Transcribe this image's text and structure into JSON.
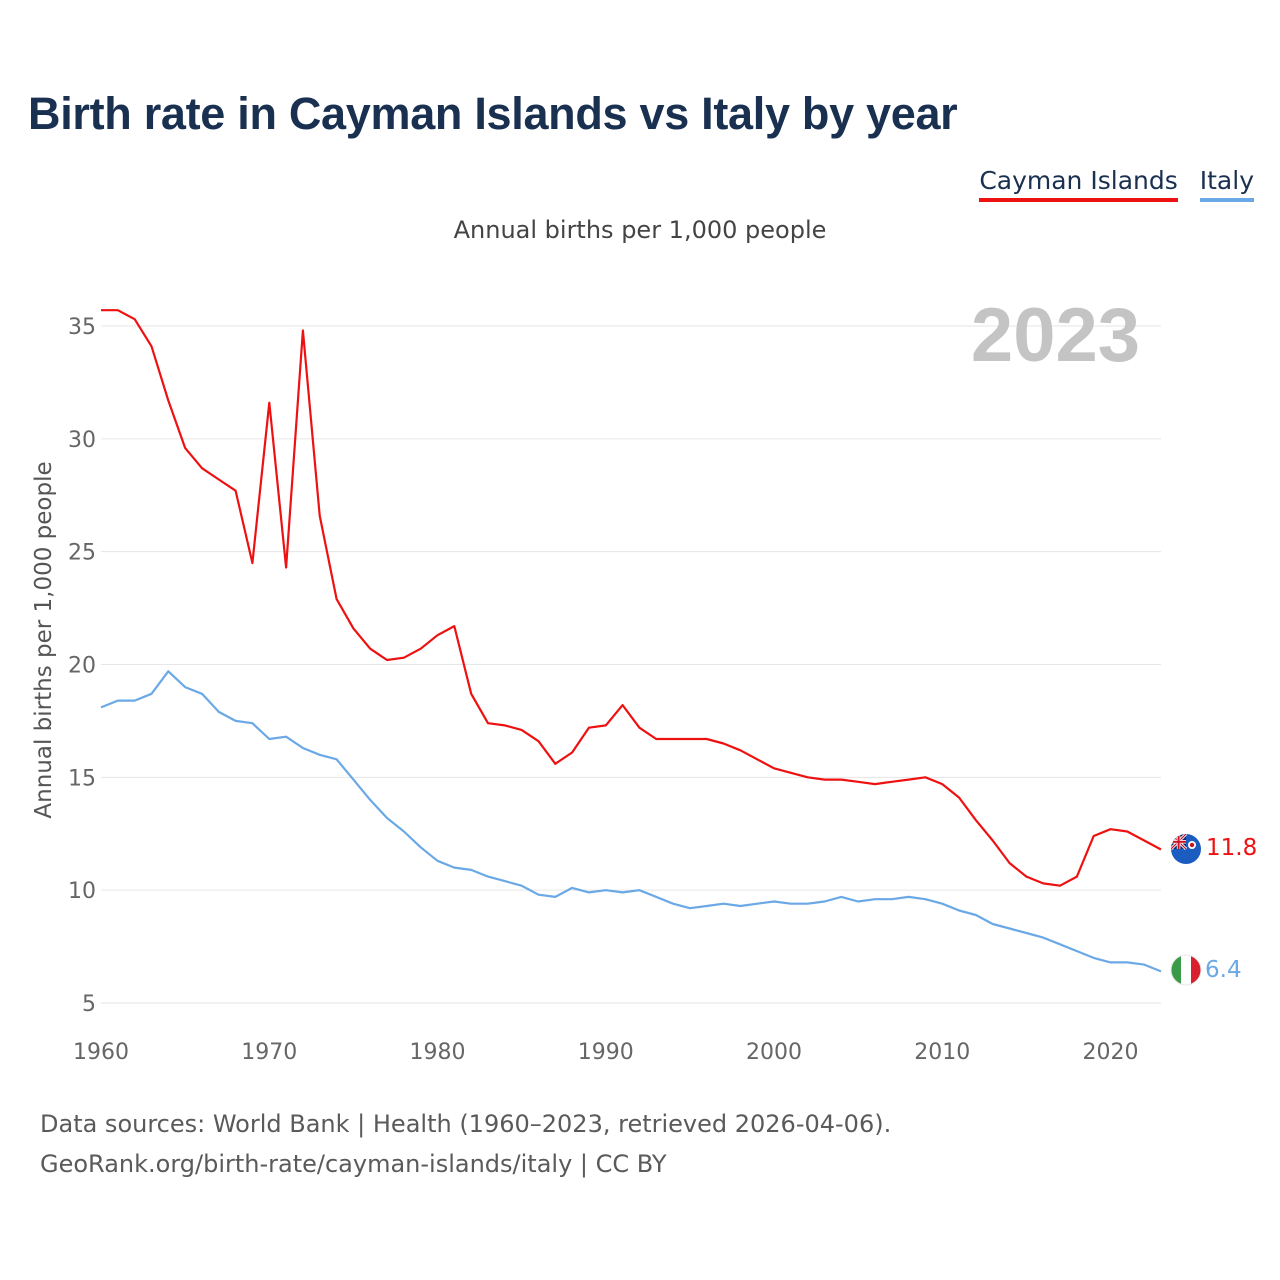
{
  "title": "Birth rate in Cayman Islands vs Italy by year",
  "legend": {
    "cayman": "Cayman Islands",
    "italy": "Italy"
  },
  "subtitle": "Annual births per 1,000 people",
  "year_watermark": "2023",
  "footer": {
    "line1": "Data sources: World Bank | Health (1960–2023, retrieved 2026-04-06).",
    "line2": "GeoRank.org/birth-rate/cayman-islands/italy | CC BY"
  },
  "colors": {
    "cayman": "#ee1111",
    "italy": "#6aa8e6",
    "title": "#1a3050"
  },
  "chart_data": {
    "type": "line",
    "title": "Birth rate in Cayman Islands vs Italy by year",
    "xlabel": "",
    "ylabel": "Annual births per 1,000 people",
    "xlim": [
      1960,
      2023
    ],
    "ylim": [
      5,
      36
    ],
    "xticks": [
      1960,
      1970,
      1980,
      1990,
      2000,
      2010,
      2020
    ],
    "yticks": [
      5,
      10,
      15,
      20,
      25,
      30,
      35
    ],
    "grid": true,
    "legend": "top-right",
    "x": [
      1960,
      1961,
      1962,
      1963,
      1964,
      1965,
      1966,
      1967,
      1968,
      1969,
      1970,
      1971,
      1972,
      1973,
      1974,
      1975,
      1976,
      1977,
      1978,
      1979,
      1980,
      1981,
      1982,
      1983,
      1984,
      1985,
      1986,
      1987,
      1988,
      1989,
      1990,
      1991,
      1992,
      1993,
      1994,
      1995,
      1996,
      1997,
      1998,
      1999,
      2000,
      2001,
      2002,
      2003,
      2004,
      2005,
      2006,
      2007,
      2008,
      2009,
      2010,
      2011,
      2012,
      2013,
      2014,
      2015,
      2016,
      2017,
      2018,
      2019,
      2020,
      2021,
      2022,
      2023
    ],
    "series": [
      {
        "name": "Cayman Islands",
        "end_label": "11.8",
        "values": [
          35.7,
          35.7,
          35.3,
          34.1,
          31.7,
          29.6,
          28.7,
          28.2,
          27.7,
          24.5,
          31.6,
          24.3,
          34.8,
          26.6,
          22.9,
          21.6,
          20.7,
          20.2,
          20.3,
          20.7,
          21.3,
          21.7,
          18.7,
          17.4,
          17.3,
          17.1,
          16.6,
          15.6,
          16.1,
          17.2,
          17.3,
          18.2,
          17.2,
          16.7,
          16.7,
          16.7,
          16.7,
          16.5,
          16.2,
          15.8,
          15.4,
          15.2,
          15.0,
          14.9,
          14.9,
          14.8,
          14.7,
          14.8,
          14.9,
          15.0,
          14.7,
          14.1,
          13.1,
          12.2,
          11.2,
          10.6,
          10.3,
          10.2,
          10.6,
          12.4,
          12.7,
          12.6,
          12.2,
          11.8
        ]
      },
      {
        "name": "Italy",
        "end_label": "6.4",
        "values": [
          18.1,
          18.4,
          18.4,
          18.7,
          19.7,
          19.0,
          18.7,
          17.9,
          17.5,
          17.4,
          16.7,
          16.8,
          16.3,
          16.0,
          15.8,
          14.9,
          14.0,
          13.2,
          12.6,
          11.9,
          11.3,
          11.0,
          10.9,
          10.6,
          10.4,
          10.2,
          9.8,
          9.7,
          10.1,
          9.9,
          10.0,
          9.9,
          10.0,
          9.7,
          9.4,
          9.2,
          9.3,
          9.4,
          9.3,
          9.4,
          9.5,
          9.4,
          9.4,
          9.5,
          9.7,
          9.5,
          9.6,
          9.6,
          9.7,
          9.6,
          9.4,
          9.1,
          8.9,
          8.5,
          8.3,
          8.1,
          7.9,
          7.6,
          7.3,
          7.0,
          6.8,
          6.8,
          6.7,
          6.4
        ]
      }
    ]
  }
}
